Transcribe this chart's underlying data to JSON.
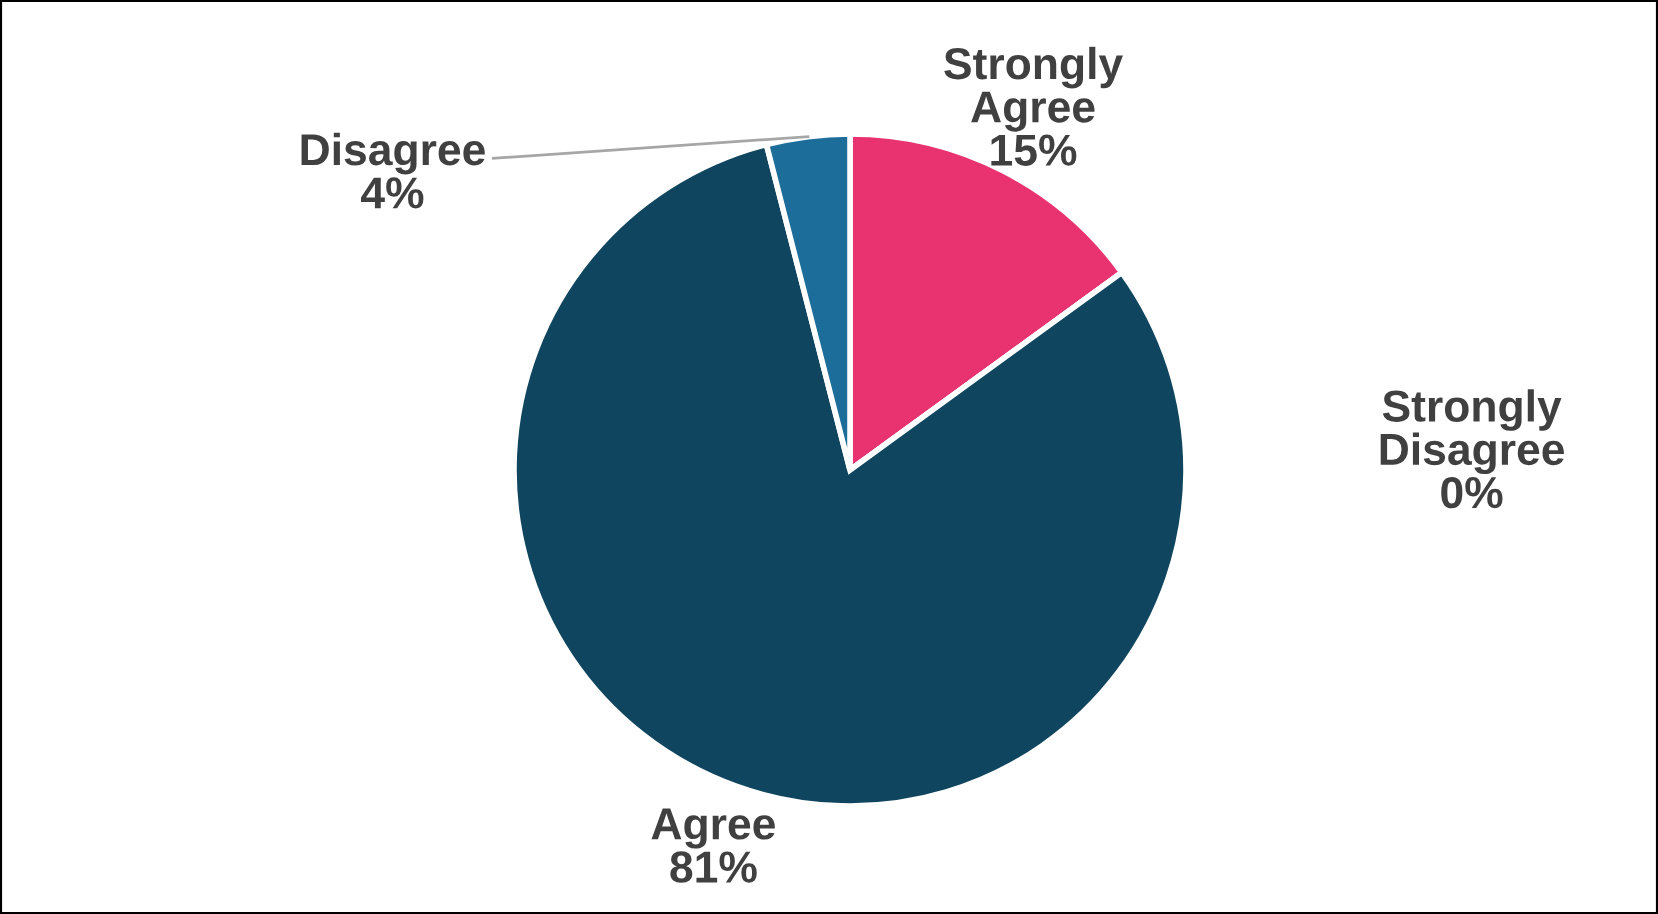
{
  "chart_data": {
    "type": "pie",
    "categories": [
      "Strongly\nAgree",
      "Strongly\nDisagree",
      "Agree",
      "Disagree"
    ],
    "values": [
      15,
      0,
      81,
      4
    ],
    "value_labels": [
      "15%",
      "0%",
      "81%",
      "4%"
    ],
    "colors": [
      "#e83370",
      "#e0e0e0",
      "#0f455e",
      "#1d6d9a"
    ],
    "legend": false
  }
}
